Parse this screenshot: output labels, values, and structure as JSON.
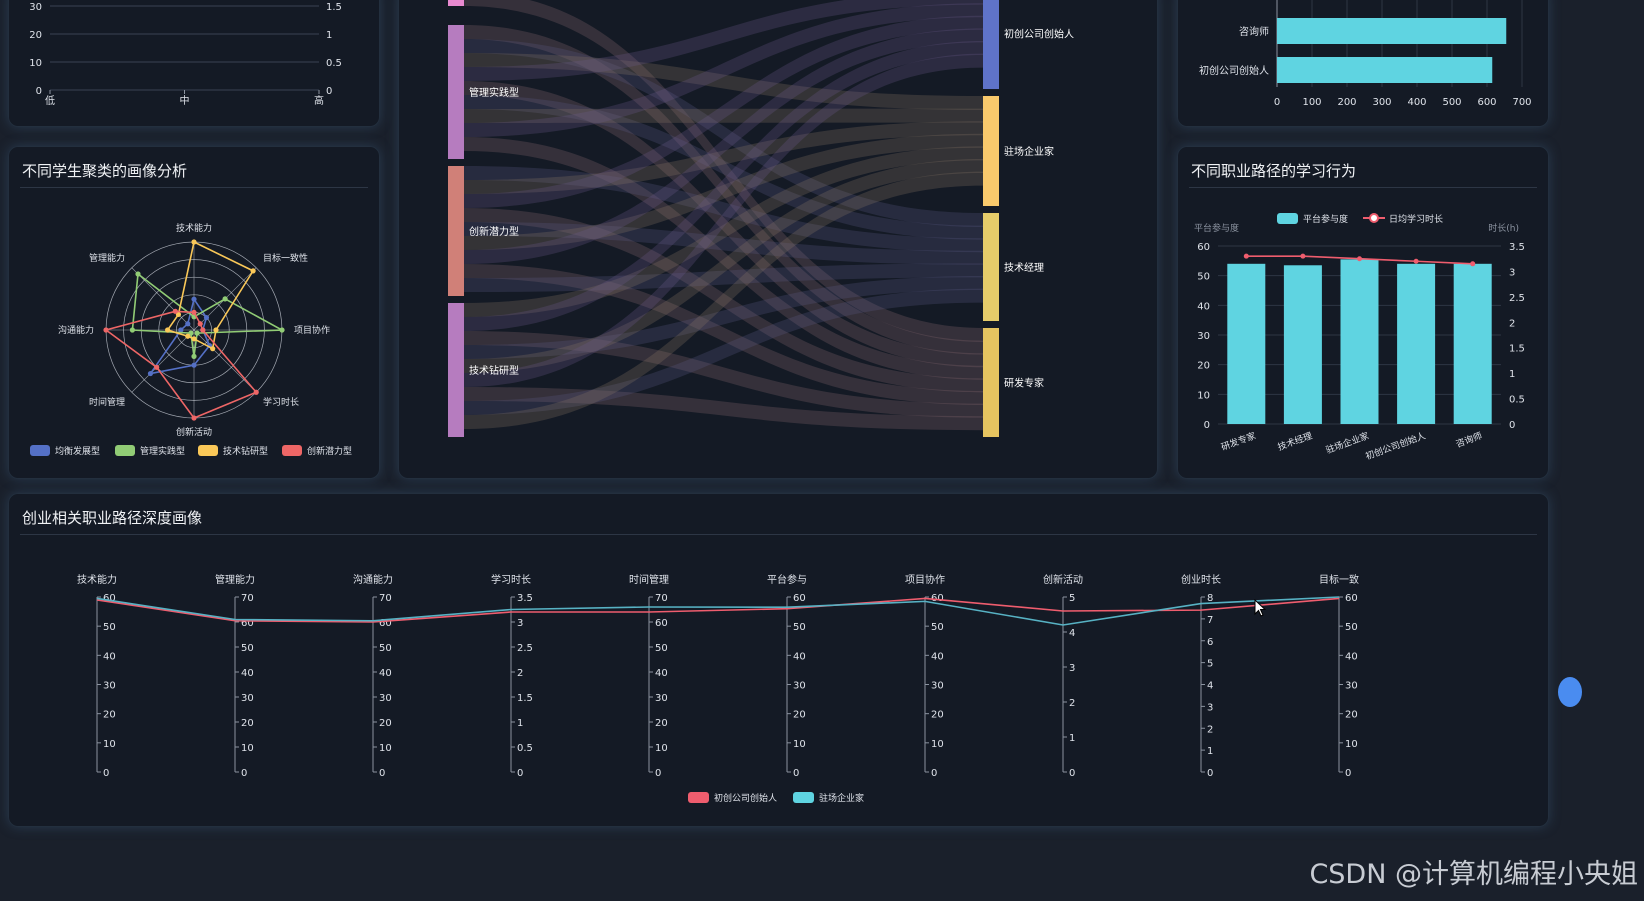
{
  "colors": {
    "panel_bg": "#141a25",
    "page_bg": "#1a202b",
    "cyan": "#5fd4e1",
    "red": "#ef5d6e",
    "blue": "#5470c6",
    "green": "#91cc75",
    "yellow": "#fac858",
    "salmon": "#ee6666",
    "purple": "#b67cbf"
  },
  "watermark": "CSDN @计算机编程小央姐",
  "top_left_chart": {
    "type": "line",
    "categories": [
      "低",
      "中",
      "高"
    ],
    "yleft_ticks": [
      "0",
      "10",
      "20",
      "30"
    ],
    "yright_ticks": [
      "0",
      "0.5",
      "1",
      "1.5"
    ]
  },
  "radar_panel": {
    "title": "不同学生聚类的画像分析",
    "chart_data": {
      "type": "radar",
      "indicators": [
        "技术能力",
        "目标一致性",
        "项目协作",
        "学习时长",
        "创新活动",
        "时间管理",
        "沟通能力",
        "管理能力"
      ],
      "max": 100,
      "series": [
        {
          "name": "均衡发展型",
          "values": [
            35,
            20,
            10,
            25,
            40,
            70,
            15,
            10
          ]
        },
        {
          "name": "管理实践型",
          "values": [
            15,
            50,
            100,
            5,
            30,
            5,
            70,
            90
          ]
        },
        {
          "name": "技术钻研型",
          "values": [
            100,
            95,
            25,
            30,
            10,
            10,
            30,
            25
          ]
        },
        {
          "name": "创新潜力型",
          "values": [
            20,
            10,
            10,
            100,
            100,
            60,
            100,
            30
          ]
        }
      ]
    }
  },
  "sankey_panel": {
    "chart_data": {
      "type": "sankey",
      "sources": [
        "管理实践型",
        "创新潜力型",
        "技术钻研型"
      ],
      "targets": [
        "初创公司创始人",
        "驻场企业家",
        "技术经理",
        "研发专家"
      ]
    }
  },
  "hbar_panel": {
    "chart_data": {
      "type": "bar",
      "orientation": "horizontal",
      "categories": [
        "咨询师",
        "初创公司创始人"
      ],
      "values": [
        655,
        615
      ],
      "xlim": [
        0,
        700
      ],
      "xticks": [
        "0",
        "100",
        "200",
        "300",
        "400",
        "500",
        "600",
        "700"
      ]
    }
  },
  "career_panel": {
    "title": "不同职业路径的学习行为",
    "chart_data": {
      "type": "bar",
      "categories": [
        "研发专家",
        "技术经理",
        "驻场企业家",
        "初创公司创始人",
        "咨询师"
      ],
      "series": [
        {
          "name": "平台参与度",
          "type": "bar",
          "values": [
            54,
            53.5,
            55.5,
            54,
            54
          ]
        },
        {
          "name": "日均学习时长",
          "type": "line",
          "values": [
            3.3,
            3.3,
            3.25,
            3.2,
            3.15
          ]
        }
      ],
      "ylabel_left": "平台参与度",
      "ylabel_right": "时长(h)",
      "ylim_left": [
        0,
        60
      ],
      "ylim_right": [
        0,
        3.5
      ],
      "yleft_ticks": [
        "0",
        "10",
        "20",
        "30",
        "40",
        "50",
        "60"
      ],
      "yright_ticks": [
        "0",
        "0.5",
        "1",
        "1.5",
        "2",
        "2.5",
        "3",
        "3.5"
      ]
    }
  },
  "parallel_panel": {
    "title": "创业相关职业路径深度画像",
    "chart_data": {
      "type": "parallel",
      "axes": [
        {
          "name": "技术能力",
          "max": 60,
          "ticks": [
            "0",
            "10",
            "20",
            "30",
            "40",
            "50",
            "60"
          ]
        },
        {
          "name": "管理能力",
          "max": 70,
          "ticks": [
            "0",
            "10",
            "20",
            "30",
            "40",
            "50",
            "60",
            "70"
          ]
        },
        {
          "name": "沟通能力",
          "max": 70,
          "ticks": [
            "0",
            "10",
            "20",
            "30",
            "40",
            "50",
            "60",
            "70"
          ]
        },
        {
          "name": "学习时长",
          "max": 3.5,
          "ticks": [
            "0",
            "0.5",
            "1",
            "1.5",
            "2",
            "2.5",
            "3",
            "3.5"
          ]
        },
        {
          "name": "时间管理",
          "max": 70,
          "ticks": [
            "0",
            "10",
            "20",
            "30",
            "40",
            "50",
            "60",
            "70"
          ]
        },
        {
          "name": "平台参与",
          "max": 60,
          "ticks": [
            "0",
            "10",
            "20",
            "30",
            "40",
            "50",
            "60"
          ]
        },
        {
          "name": "项目协作",
          "max": 60,
          "ticks": [
            "0",
            "10",
            "20",
            "30",
            "40",
            "50",
            "60"
          ]
        },
        {
          "name": "创新活动",
          "max": 5,
          "ticks": [
            "0",
            "1",
            "2",
            "3",
            "4",
            "5"
          ]
        },
        {
          "name": "创业时长",
          "max": 8,
          "ticks": [
            "0",
            "1",
            "2",
            "3",
            "4",
            "5",
            "6",
            "7",
            "8"
          ]
        },
        {
          "name": "目标一致",
          "max": 60,
          "ticks": [
            "0",
            "10",
            "20",
            "30",
            "40",
            "50",
            "60"
          ]
        }
      ],
      "series": [
        {
          "name": "初创公司创始人",
          "values": [
            59,
            60.5,
            60,
            3.2,
            64,
            56,
            59.5,
            4.6,
            7.4,
            59.5
          ]
        },
        {
          "name": "驻场企业家",
          "values": [
            59.5,
            61,
            60.5,
            3.25,
            66,
            56.5,
            58.5,
            4.2,
            7.7,
            60
          ]
        }
      ]
    }
  }
}
